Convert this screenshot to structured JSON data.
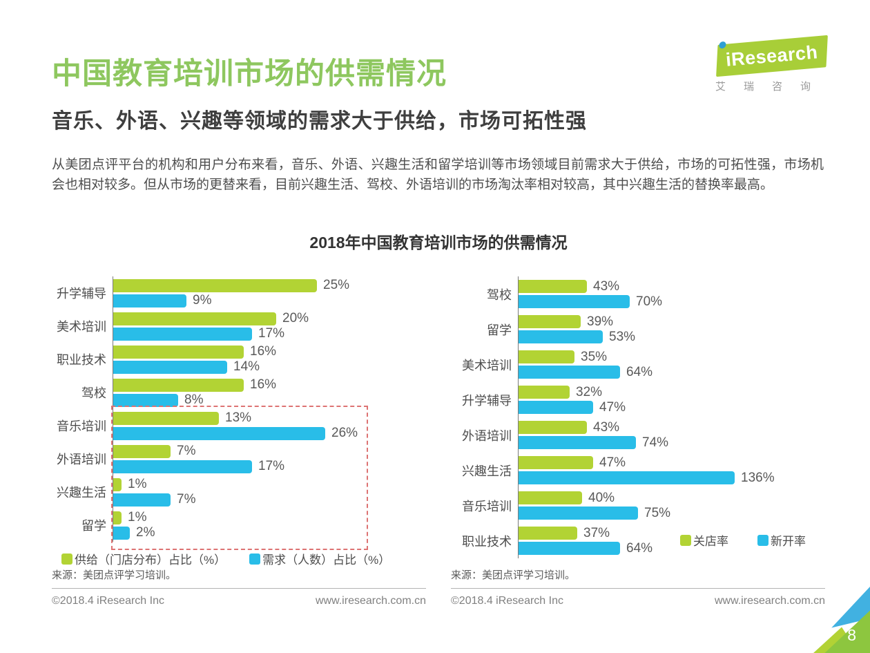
{
  "header": {
    "title": "中国教育培训市场的供需情况",
    "subtitle": "音乐、外语、兴趣等领域的需求大于供给，市场可拓性强",
    "paragraph": "从美团点评平台的机构和用户分布来看，音乐、外语、兴趣生活和留学培训等市场领域目前需求大于供给，市场的可拓性强，市场机会也相对较多。但从市场的更替来看，目前兴趣生活、驾校、外语培训的市场淘汰率相对较高，其中兴趣生活的替换率最高。",
    "logo": {
      "brand": "iResearch",
      "sub": "艾瑞咨询"
    }
  },
  "chart_title": "2018年中国教育培训市场的供需情况",
  "colors": {
    "bar_green": "#b2d334",
    "bar_blue": "#29bde8",
    "title_green": "#8ec75f",
    "dashed_red": "#dd7373"
  },
  "chart_data": [
    {
      "type": "bar",
      "orientation": "horizontal",
      "title": "2018年中国教育培训市场的供需情况",
      "categories": [
        "升学辅导",
        "美术培训",
        "职业技术",
        "驾校",
        "音乐培训",
        "外语培训",
        "兴趣生活",
        "留学"
      ],
      "series": [
        {
          "name": "供给（门店分布）占比（%）",
          "color": "#b2d334",
          "values": [
            25,
            20,
            16,
            16,
            13,
            7,
            1,
            1
          ]
        },
        {
          "name": "需求（人数）占比（%）",
          "color": "#29bde8",
          "values": [
            9,
            17,
            14,
            8,
            26,
            17,
            7,
            2
          ]
        }
      ],
      "value_suffix": "%",
      "legend_position": "bottom",
      "grid": false,
      "highlighted_categories": [
        "音乐培训",
        "外语培训",
        "兴趣生活",
        "留学"
      ],
      "source": "来源：美团点评学习培训。"
    },
    {
      "type": "bar",
      "orientation": "horizontal",
      "categories": [
        "驾校",
        "留学",
        "美术培训",
        "升学辅导",
        "外语培训",
        "兴趣生活",
        "音乐培训",
        "职业技术"
      ],
      "series": [
        {
          "name": "关店率",
          "color": "#b2d334",
          "values": [
            43,
            39,
            35,
            32,
            43,
            47,
            40,
            37
          ]
        },
        {
          "name": "新开率",
          "color": "#29bde8",
          "values": [
            70,
            53,
            64,
            47,
            74,
            136,
            75,
            64
          ]
        }
      ],
      "value_suffix": "%",
      "legend_position": "inside-bottom-right",
      "grid": false,
      "source": "来源：美团点评学习培训。"
    }
  ],
  "footer": {
    "left": {
      "copyright": "©2018.4 iResearch Inc",
      "site": "www.iresearch.com.cn"
    },
    "right": {
      "copyright": "©2018.4 iResearch Inc",
      "site": "www.iresearch.com.cn"
    },
    "page_number": "8"
  }
}
